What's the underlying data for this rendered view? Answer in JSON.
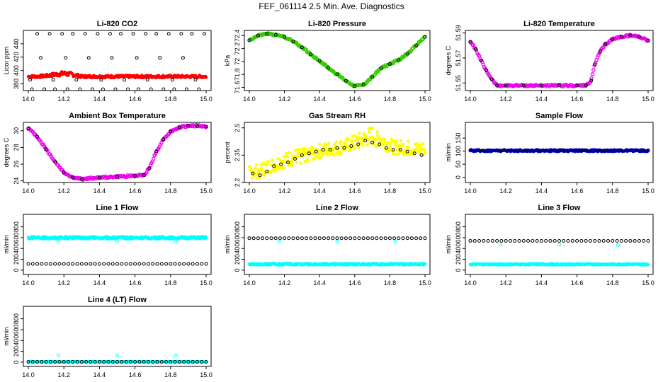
{
  "page": {
    "title": "FEF_061114  2.5 Min. Ave. Diagnostics"
  },
  "chart_data": [
    {
      "type": "scatter",
      "title": "Li-820 CO2",
      "ylabel": "Licor ppm",
      "xlabel": "",
      "xlim": [
        14.0,
        15.0
      ],
      "ylim": [
        370,
        460
      ],
      "xticks": [
        "14.0",
        "14.2",
        "14.4",
        "14.6",
        "14.8",
        "15.0"
      ],
      "yticks": [
        380,
        400,
        420,
        440
      ],
      "series": [
        {
          "color": "#ff0000",
          "marker": "dense",
          "style": "band",
          "x": [
            14.0,
            14.05,
            14.1,
            14.15,
            14.2,
            14.25,
            14.3,
            14.35,
            14.4,
            14.5,
            14.6,
            14.7,
            14.8,
            14.9,
            15.0
          ],
          "lo": [
            389,
            389,
            390,
            391,
            392,
            391,
            389,
            389,
            389,
            389,
            389,
            389,
            389,
            389,
            389
          ],
          "hi": [
            393,
            393,
            394,
            397,
            399,
            397,
            393,
            393,
            393,
            393,
            393,
            393,
            393,
            393,
            393
          ]
        },
        {
          "color": "#000000",
          "marker": "circle",
          "style": "points",
          "x": [
            14.02,
            14.09,
            14.15,
            14.22,
            14.29,
            14.36,
            14.42,
            14.49,
            14.56,
            14.62,
            14.69,
            14.76,
            14.82,
            14.89,
            14.96,
            14.05,
            14.12,
            14.19,
            14.25,
            14.32,
            14.39,
            14.46,
            14.52,
            14.59,
            14.66,
            14.72,
            14.79,
            14.86,
            14.92,
            14.99,
            14.01,
            14.07,
            14.14,
            14.21,
            14.27,
            14.34,
            14.41,
            14.47,
            14.54,
            14.61,
            14.67,
            14.74,
            14.81,
            14.87,
            14.94
          ],
          "y": [
            372,
            372,
            372,
            372,
            372,
            372,
            372,
            372,
            372,
            372,
            372,
            372,
            372,
            372,
            372,
            455,
            455,
            455,
            455,
            455,
            455,
            455,
            455,
            455,
            455,
            455,
            455,
            455,
            455,
            455,
            386,
            419,
            386,
            419,
            386,
            419,
            386,
            419,
            386,
            419,
            386,
            419,
            386,
            419,
            386
          ]
        }
      ]
    },
    {
      "type": "scatter",
      "title": "Li-820 Pressure",
      "ylabel": "kPa",
      "xlabel": "",
      "xlim": [
        14.0,
        15.0
      ],
      "ylim": [
        71.55,
        72.48
      ],
      "xticks": [
        "14.0",
        "14.2",
        "14.4",
        "14.6",
        "14.8",
        "15.0"
      ],
      "yticks": [
        71.6,
        71.8,
        72.0,
        72.2,
        72.4
      ],
      "series": [
        {
          "color": "#33cc00",
          "marker": "circle",
          "style": "line-dense",
          "x": [
            14.0,
            14.05,
            14.1,
            14.15,
            14.2,
            14.25,
            14.3,
            14.35,
            14.4,
            14.45,
            14.5,
            14.55,
            14.6,
            14.65,
            14.7,
            14.75,
            14.8,
            14.85,
            14.9,
            14.95,
            15.0
          ],
          "y": [
            72.33,
            72.4,
            72.43,
            72.41,
            72.38,
            72.31,
            72.22,
            72.11,
            72.01,
            71.9,
            71.8,
            71.7,
            71.62,
            71.64,
            71.76,
            71.9,
            71.96,
            72.02,
            72.12,
            72.25,
            72.38
          ]
        },
        {
          "color": "#000000",
          "marker": "circle",
          "style": "points",
          "x": [
            14.0,
            14.05,
            14.1,
            14.15,
            14.2,
            14.25,
            14.3,
            14.35,
            14.4,
            14.45,
            14.5,
            14.55,
            14.6,
            14.65,
            14.7,
            14.75,
            14.8,
            14.85,
            14.9,
            14.95,
            15.0
          ],
          "y": [
            72.33,
            72.4,
            72.43,
            72.41,
            72.38,
            72.31,
            72.22,
            72.11,
            72.01,
            71.9,
            71.8,
            71.7,
            71.62,
            71.64,
            71.76,
            71.9,
            71.96,
            72.02,
            72.12,
            72.25,
            72.38
          ]
        }
      ]
    },
    {
      "type": "scatter",
      "title": "Li-820 Temperature",
      "ylabel": "degrees C",
      "xlabel": "",
      "xlim": [
        14.0,
        15.0
      ],
      "ylim": [
        51.544,
        51.592
      ],
      "xticks": [
        "14.0",
        "14.2",
        "14.4",
        "14.6",
        "14.8",
        "15.0"
      ],
      "yticks": [
        51.55,
        51.57,
        51.59
      ],
      "series": [
        {
          "color": "#ee00ee",
          "marker": "circle",
          "style": "line-dense",
          "x": [
            14.0,
            14.03,
            14.06,
            14.09,
            14.12,
            14.15,
            14.2,
            14.3,
            14.4,
            14.5,
            14.6,
            14.65,
            14.68,
            14.7,
            14.73,
            14.76,
            14.8,
            14.85,
            14.9,
            14.95,
            15.0
          ],
          "y": [
            51.583,
            51.577,
            51.568,
            51.56,
            51.553,
            51.548,
            51.548,
            51.548,
            51.548,
            51.548,
            51.548,
            51.548,
            51.552,
            51.565,
            51.575,
            51.581,
            51.585,
            51.587,
            51.588,
            51.587,
            51.584
          ]
        },
        {
          "color": "#000000",
          "marker": "circle",
          "style": "points",
          "x": [
            14.0,
            14.03,
            14.06,
            14.09,
            14.12,
            14.15,
            14.2,
            14.3,
            14.4,
            14.5,
            14.6,
            14.65,
            14.68,
            14.7,
            14.73,
            14.76,
            14.8,
            14.85,
            14.9,
            14.95,
            15.0
          ],
          "y": [
            51.583,
            51.577,
            51.568,
            51.56,
            51.553,
            51.548,
            51.548,
            51.548,
            51.548,
            51.548,
            51.548,
            51.548,
            51.552,
            51.565,
            51.575,
            51.581,
            51.585,
            51.587,
            51.588,
            51.587,
            51.584
          ]
        }
      ]
    },
    {
      "type": "scatter",
      "title": "Ambient Box Temperature",
      "ylabel": "degrees C",
      "xlabel": "",
      "xlim": [
        14.0,
        15.0
      ],
      "ylim": [
        23.8,
        31.0
      ],
      "xticks": [
        "14.0",
        "14.2",
        "14.4",
        "14.6",
        "14.8",
        "15.0"
      ],
      "yticks": [
        24,
        26,
        28,
        30
      ],
      "series": [
        {
          "color": "#ee00ee",
          "marker": "circle",
          "style": "line-dense",
          "x": [
            14.0,
            14.05,
            14.1,
            14.15,
            14.2,
            14.25,
            14.3,
            14.4,
            14.5,
            14.6,
            14.65,
            14.68,
            14.72,
            14.76,
            14.8,
            14.85,
            14.9,
            14.95,
            15.0
          ],
          "y": [
            30.3,
            29.3,
            27.8,
            26.3,
            25.0,
            24.4,
            24.2,
            24.4,
            24.5,
            24.6,
            24.7,
            25.5,
            27.5,
            29.0,
            29.9,
            30.4,
            30.6,
            30.6,
            30.5
          ]
        },
        {
          "color": "#000000",
          "marker": "circle",
          "style": "points",
          "x": [
            14.0,
            14.05,
            14.1,
            14.15,
            14.2,
            14.25,
            14.3,
            14.4,
            14.5,
            14.6,
            14.65,
            14.68,
            14.72,
            14.76,
            14.8,
            14.85,
            14.9,
            14.95,
            15.0
          ],
          "y": [
            30.3,
            29.3,
            27.8,
            26.3,
            25.0,
            24.4,
            24.2,
            24.4,
            24.5,
            24.6,
            24.7,
            25.5,
            27.5,
            29.0,
            29.9,
            30.4,
            30.6,
            30.6,
            30.5
          ]
        }
      ]
    },
    {
      "type": "scatter",
      "title": "Gas Stream RH",
      "ylabel": "percent",
      "xlabel": "",
      "xlim": [
        14.0,
        15.0
      ],
      "ylim": [
        2.2,
        2.53
      ],
      "xticks": [
        "14.0",
        "14.2",
        "14.4",
        "14.6",
        "14.8",
        "15.0"
      ],
      "yticks": [
        2.2,
        2.35,
        2.5
      ],
      "series": [
        {
          "color": "#ffff00",
          "marker": "dense",
          "style": "band",
          "x": [
            14.0,
            14.05,
            14.1,
            14.15,
            14.2,
            14.25,
            14.3,
            14.35,
            14.4,
            14.45,
            14.5,
            14.55,
            14.6,
            14.65,
            14.7,
            14.75,
            14.8,
            14.85,
            14.9,
            14.95,
            15.0
          ],
          "lo": [
            2.22,
            2.22,
            2.24,
            2.26,
            2.28,
            2.29,
            2.31,
            2.32,
            2.33,
            2.34,
            2.35,
            2.36,
            2.37,
            2.39,
            2.4,
            2.39,
            2.36,
            2.35,
            2.35,
            2.34,
            2.34
          ],
          "hi": [
            2.29,
            2.3,
            2.32,
            2.34,
            2.36,
            2.38,
            2.39,
            2.4,
            2.41,
            2.42,
            2.43,
            2.44,
            2.46,
            2.48,
            2.51,
            2.48,
            2.44,
            2.43,
            2.43,
            2.42,
            2.42
          ]
        },
        {
          "color": "#000000",
          "marker": "circle",
          "style": "points",
          "x": [
            14.02,
            14.06,
            14.1,
            14.14,
            14.18,
            14.22,
            14.26,
            14.3,
            14.34,
            14.38,
            14.42,
            14.46,
            14.5,
            14.54,
            14.58,
            14.62,
            14.66,
            14.7,
            14.74,
            14.78,
            14.82,
            14.86,
            14.9,
            14.94,
            14.98
          ],
          "y": [
            2.25,
            2.24,
            2.26,
            2.29,
            2.3,
            2.31,
            2.33,
            2.35,
            2.36,
            2.37,
            2.38,
            2.38,
            2.39,
            2.39,
            2.4,
            2.41,
            2.43,
            2.42,
            2.41,
            2.39,
            2.38,
            2.38,
            2.37,
            2.36,
            2.35
          ]
        }
      ]
    },
    {
      "type": "scatter",
      "title": "Sample Flow",
      "ylabel": "ml/min",
      "xlabel": "",
      "xlim": [
        14.0,
        15.0
      ],
      "ylim": [
        -20,
        210
      ],
      "xticks": [
        "14.0",
        "14.2",
        "14.4",
        "14.6",
        "14.8",
        "15.0"
      ],
      "yticks": [
        0,
        50,
        100,
        150
      ],
      "series": [
        {
          "color": "#0000cc",
          "marker": "dense",
          "style": "band",
          "x": [
            14.0,
            15.0
          ],
          "lo": [
            98,
            98
          ],
          "hi": [
            106,
            106
          ]
        },
        {
          "color": "#000000",
          "marker": "circle",
          "style": "flat",
          "value": 102,
          "count": 41
        }
      ]
    },
    {
      "type": "scatter",
      "title": "Line 1 Flow",
      "ylabel": "ml/min",
      "xlabel": "",
      "xlim": [
        14.0,
        15.0
      ],
      "ylim": [
        -80,
        1030
      ],
      "xticks": [
        "14.0",
        "14.2",
        "14.4",
        "14.6",
        "14.8",
        "15.0"
      ],
      "yticks": [
        0,
        200,
        400,
        600,
        800
      ],
      "series": [
        {
          "color": "#00ffff",
          "marker": "dense",
          "style": "band",
          "x": [
            14.0,
            15.0
          ],
          "lo": [
            575,
            575
          ],
          "hi": [
            620,
            620
          ]
        },
        {
          "color": "#00ffff",
          "marker": "circle",
          "style": "points",
          "x": [
            14.17,
            14.5,
            14.83
          ],
          "y": [
            540,
            540,
            530
          ]
        },
        {
          "color": "#000000",
          "marker": "circle",
          "style": "flat",
          "value": 115,
          "count": 41
        }
      ]
    },
    {
      "type": "scatter",
      "title": "Line 2 Flow",
      "ylabel": "ml/min",
      "xlabel": "",
      "xlim": [
        14.0,
        15.0
      ],
      "ylim": [
        -80,
        1030
      ],
      "xticks": [
        "14.0",
        "14.2",
        "14.4",
        "14.6",
        "14.8",
        "15.0"
      ],
      "yticks": [
        0,
        200,
        400,
        600,
        800
      ],
      "series": [
        {
          "color": "#00ffff",
          "marker": "dense",
          "style": "band",
          "x": [
            14.0,
            15.0
          ],
          "lo": [
            95,
            95
          ],
          "hi": [
            125,
            125
          ]
        },
        {
          "color": "#00ffff",
          "marker": "circle",
          "style": "points",
          "x": [
            14.0,
            14.17,
            14.5,
            14.83
          ],
          "y": [
            590,
            530,
            530,
            530
          ]
        },
        {
          "color": "#000000",
          "marker": "circle",
          "style": "flat",
          "value": 590,
          "count": 41
        }
      ]
    },
    {
      "type": "scatter",
      "title": "Line 3 Flow",
      "ylabel": "ml/min",
      "xlabel": "",
      "xlim": [
        14.0,
        15.0
      ],
      "ylim": [
        -80,
        1030
      ],
      "xticks": [
        "14.0",
        "14.2",
        "14.4",
        "14.6",
        "14.8",
        "15.0"
      ],
      "yticks": [
        0,
        200,
        400,
        600,
        800
      ],
      "series": [
        {
          "color": "#00ffff",
          "marker": "dense",
          "style": "band",
          "x": [
            14.0,
            15.0
          ],
          "lo": [
            95,
            95
          ],
          "hi": [
            120,
            120
          ]
        },
        {
          "color": "#00ffff",
          "marker": "circle",
          "style": "points",
          "x": [
            14.0,
            14.17,
            14.5,
            14.83
          ],
          "y": [
            540,
            470,
            470,
            460
          ]
        },
        {
          "color": "#000000",
          "marker": "circle",
          "style": "flat",
          "value": 540,
          "count": 41
        }
      ]
    },
    {
      "type": "scatter",
      "title": "Line 4 (LT) Flow",
      "ylabel": "ml/min",
      "xlabel": "",
      "xlim": [
        14.0,
        15.0
      ],
      "ylim": [
        -80,
        1030
      ],
      "xticks": [
        "14.0",
        "14.2",
        "14.4",
        "14.6",
        "14.8",
        "15.0"
      ],
      "yticks": [
        0,
        200,
        400,
        600,
        800
      ],
      "series": [
        {
          "color": "#00ffff",
          "marker": "dense",
          "style": "band",
          "x": [
            14.0,
            15.0
          ],
          "lo": [
            0,
            0
          ],
          "hi": [
            12,
            12
          ]
        },
        {
          "color": "#00ffff",
          "marker": "circle",
          "style": "points",
          "x": [
            14.17,
            14.5,
            14.83
          ],
          "y": [
            125,
            125,
            125
          ]
        },
        {
          "color": "#000000",
          "marker": "circle",
          "style": "flat",
          "value": 5,
          "count": 41
        }
      ]
    }
  ]
}
